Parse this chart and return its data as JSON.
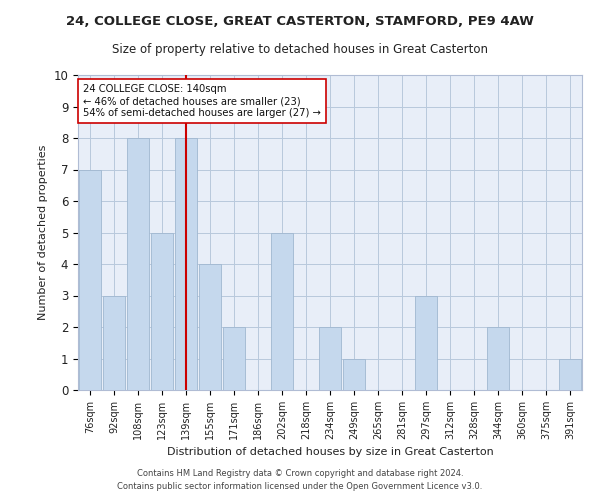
{
  "title1": "24, COLLEGE CLOSE, GREAT CASTERTON, STAMFORD, PE9 4AW",
  "title2": "Size of property relative to detached houses in Great Casterton",
  "xlabel": "Distribution of detached houses by size in Great Casterton",
  "ylabel": "Number of detached properties",
  "categories": [
    "76sqm",
    "92sqm",
    "108sqm",
    "123sqm",
    "139sqm",
    "155sqm",
    "171sqm",
    "186sqm",
    "202sqm",
    "218sqm",
    "234sqm",
    "249sqm",
    "265sqm",
    "281sqm",
    "297sqm",
    "312sqm",
    "328sqm",
    "344sqm",
    "360sqm",
    "375sqm",
    "391sqm"
  ],
  "values": [
    7,
    3,
    8,
    5,
    8,
    4,
    2,
    0,
    5,
    0,
    2,
    1,
    0,
    0,
    3,
    0,
    0,
    2,
    0,
    0,
    1
  ],
  "bar_color": "#c5d8ed",
  "bar_edge_color": "#a0b8d0",
  "vline_x": 4,
  "vline_color": "#cc0000",
  "annotation_text": "24 COLLEGE CLOSE: 140sqm\n← 46% of detached houses are smaller (23)\n54% of semi-detached houses are larger (27) →",
  "annotation_box_color": "#ffffff",
  "annotation_box_edge": "#cc0000",
  "footer1": "Contains HM Land Registry data © Crown copyright and database right 2024.",
  "footer2": "Contains public sector information licensed under the Open Government Licence v3.0.",
  "ylim": [
    0,
    10
  ],
  "yticks": [
    0,
    1,
    2,
    3,
    4,
    5,
    6,
    7,
    8,
    9,
    10
  ],
  "background_color": "#e8eef8"
}
